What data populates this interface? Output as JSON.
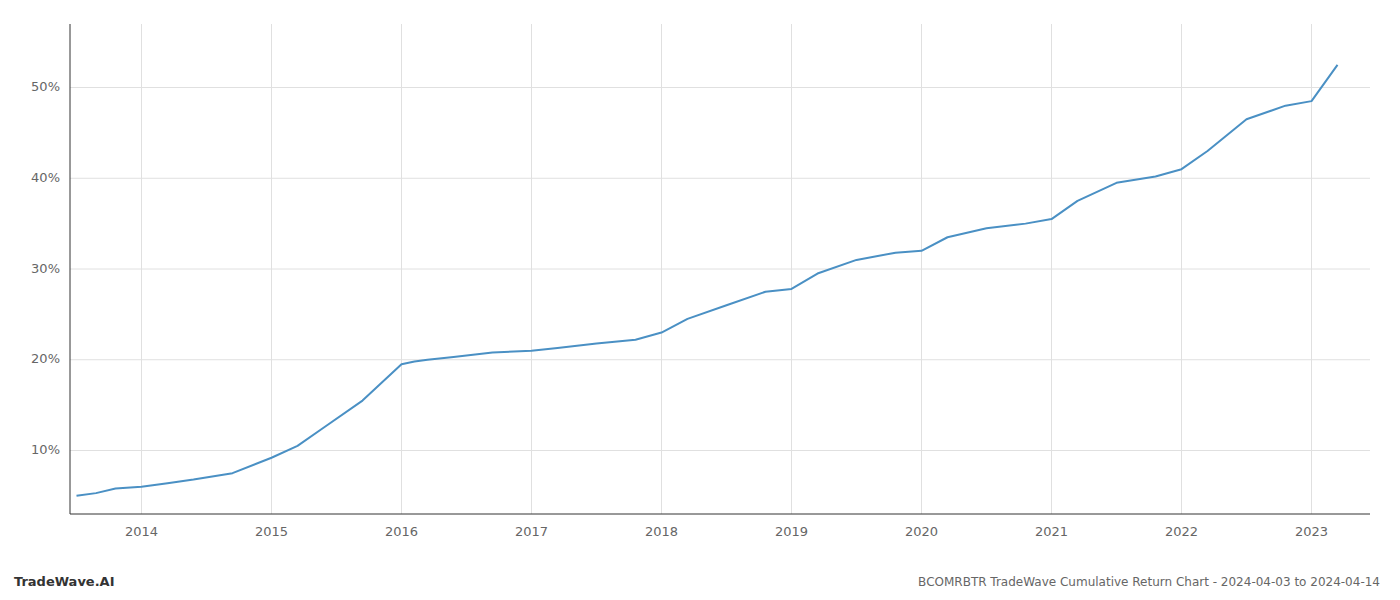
{
  "chart_data": {
    "type": "line",
    "title": "BCOMRBTR TradeWave Cumulative Return Chart - 2024-04-03 to 2024-04-14",
    "annotations": [
      "TradeWave.AI"
    ],
    "x": [
      2013.5,
      2013.65,
      2013.8,
      2014.0,
      2014.2,
      2014.4,
      2014.7,
      2015.0,
      2015.2,
      2015.4,
      2015.7,
      2016.0,
      2016.1,
      2016.2,
      2016.4,
      2016.7,
      2017.0,
      2017.2,
      2017.5,
      2017.8,
      2018.0,
      2018.2,
      2018.5,
      2018.8,
      2019.0,
      2019.2,
      2019.5,
      2019.8,
      2020.0,
      2020.2,
      2020.5,
      2020.8,
      2021.0,
      2021.2,
      2021.5,
      2021.8,
      2022.0,
      2022.2,
      2022.5,
      2022.8,
      2023.0,
      2023.2
    ],
    "values": [
      5.0,
      5.3,
      5.8,
      6.0,
      6.4,
      6.8,
      7.5,
      9.2,
      10.5,
      12.5,
      15.5,
      19.5,
      19.8,
      20.0,
      20.3,
      20.8,
      21.0,
      21.3,
      21.8,
      22.2,
      23.0,
      24.5,
      26.0,
      27.5,
      27.8,
      29.5,
      31.0,
      31.8,
      32.0,
      33.5,
      34.5,
      35.0,
      35.5,
      37.5,
      39.5,
      40.2,
      41.0,
      43.0,
      46.5,
      48.0,
      48.5,
      52.5
    ],
    "color": "#4a90c4",
    "xlim": [
      2013.45,
      2023.45
    ],
    "xticks": [
      2014,
      2015,
      2016,
      2017,
      2018,
      2019,
      2020,
      2021,
      2022,
      2023
    ],
    "ylim": [
      3,
      57
    ],
    "yticks": [
      {
        "value": 10,
        "label": "10%"
      },
      {
        "value": 20,
        "label": "20%"
      },
      {
        "value": 30,
        "label": "30%"
      },
      {
        "value": 40,
        "label": "40%"
      },
      {
        "value": 50,
        "label": "50%"
      }
    ],
    "grid": true
  }
}
